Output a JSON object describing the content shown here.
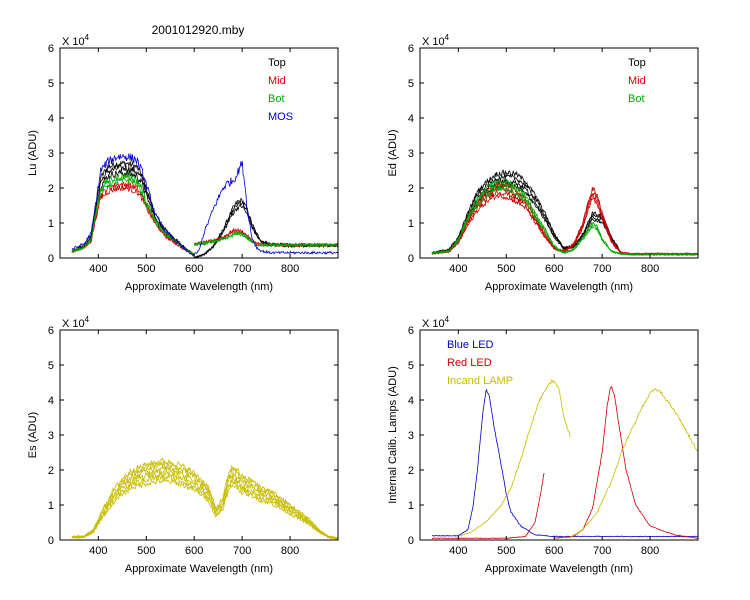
{
  "figure_title": "2001012920.mby",
  "chart_data": [
    {
      "type": "line",
      "id": "lu",
      "ylabel": "Lu (ADU)",
      "xlabel": "Approximate Wavelength (nm)",
      "multiplier": "X 10",
      "multiplier_exp": "4",
      "xlim": [
        320,
        900
      ],
      "ylim": [
        0,
        6
      ],
      "xticks": [
        400,
        500,
        600,
        700,
        800
      ],
      "yticks": [
        0,
        1,
        2,
        3,
        4,
        5,
        6
      ],
      "series": [
        {
          "name": "Top",
          "color": "#000000",
          "noise": 0.08,
          "copies": 3,
          "segments": [
            {
              "x": [
                345,
                370,
                385,
                395,
                405,
                420,
                440,
                460,
                480,
                490,
                500,
                520,
                540,
                560,
                580,
                600
              ],
              "y": [
                0.2,
                0.35,
                0.6,
                1.5,
                2.3,
                2.6,
                2.7,
                2.7,
                2.6,
                2.4,
                2.0,
                1.2,
                0.8,
                0.55,
                0.3,
                0.1
              ]
            },
            {
              "x": [
                600,
                620,
                640,
                660,
                670,
                680,
                690,
                700,
                710,
                720,
                730,
                740,
                760,
                800,
                900
              ],
              "y": [
                0.0,
                0.1,
                0.35,
                0.8,
                1.1,
                1.4,
                1.6,
                1.65,
                1.4,
                1.0,
                0.7,
                0.5,
                0.4,
                0.38,
                0.38
              ]
            }
          ]
        },
        {
          "name": "Mid",
          "color": "#cc0000",
          "noise": 0.08,
          "copies": 2,
          "segments": [
            {
              "x": [
                345,
                370,
                385,
                395,
                405,
                420,
                440,
                460,
                480,
                490,
                500,
                520,
                540,
                560,
                580,
                600
              ],
              "y": [
                0.2,
                0.3,
                0.5,
                1.2,
                1.8,
                2.0,
                2.1,
                2.1,
                2.0,
                1.8,
                1.5,
                1.0,
                0.65,
                0.45,
                0.25,
                0.1
              ]
            },
            {
              "x": [
                600,
                620,
                640,
                660,
                670,
                680,
                690,
                700,
                710,
                720,
                730,
                740,
                760,
                800,
                900
              ],
              "y": [
                0.4,
                0.45,
                0.5,
                0.6,
                0.68,
                0.78,
                0.8,
                0.75,
                0.65,
                0.5,
                0.42,
                0.4,
                0.4,
                0.38,
                0.38
              ]
            }
          ]
        },
        {
          "name": "Bot",
          "color": "#00aa00",
          "noise": 0.08,
          "copies": 2,
          "segments": [
            {
              "x": [
                345,
                370,
                385,
                395,
                405,
                420,
                440,
                460,
                480,
                490,
                500,
                520,
                540,
                560,
                580,
                600
              ],
              "y": [
                0.2,
                0.3,
                0.55,
                1.35,
                2.0,
                2.2,
                2.3,
                2.35,
                2.25,
                2.0,
                1.6,
                1.05,
                0.7,
                0.5,
                0.28,
                0.1
              ]
            },
            {
              "x": [
                600,
                620,
                640,
                660,
                670,
                680,
                690,
                700,
                710,
                720,
                730,
                740,
                760,
                800,
                900
              ],
              "y": [
                0.4,
                0.42,
                0.48,
                0.55,
                0.6,
                0.68,
                0.72,
                0.7,
                0.6,
                0.48,
                0.4,
                0.38,
                0.38,
                0.38,
                0.38
              ]
            }
          ]
        },
        {
          "name": "MOS",
          "color": "#0000cc",
          "noise": 0.1,
          "copies": 1,
          "segments": [
            {
              "x": [
                345,
                370,
                385,
                395,
                405,
                420,
                440,
                460,
                480,
                490,
                500,
                520,
                540,
                560,
                580,
                600
              ],
              "y": [
                0.25,
                0.4,
                0.7,
                1.6,
                2.5,
                2.75,
                2.9,
                2.9,
                2.8,
                2.5,
                2.1,
                1.2,
                0.8,
                0.5,
                0.25,
                0.05
              ]
            },
            {
              "x": [
                600,
                610,
                620,
                640,
                650,
                660,
                670,
                680,
                690,
                695,
                700,
                705,
                710,
                720,
                730,
                740,
                760,
                900
              ],
              "y": [
                0.1,
                0.2,
                0.7,
                1.4,
                1.7,
                2.0,
                2.15,
                2.2,
                2.4,
                2.6,
                2.7,
                2.2,
                1.5,
                0.6,
                0.3,
                0.2,
                0.15,
                0.15
              ]
            }
          ]
        }
      ]
    },
    {
      "type": "line",
      "id": "ed",
      "ylabel": "Ed  (ADU)",
      "xlabel": "Approximate Wavelength (nm)",
      "multiplier": "X 10",
      "multiplier_exp": "4",
      "xlim": [
        320,
        900
      ],
      "ylim": [
        0,
        6
      ],
      "xticks": [
        400,
        500,
        600,
        700,
        800
      ],
      "yticks": [
        0,
        1,
        2,
        3,
        4,
        5,
        6
      ],
      "series": [
        {
          "name": "Top",
          "color": "#000000",
          "noise": 0.06,
          "copies": 4,
          "segments": [
            {
              "x": [
                345,
                380,
                400,
                420,
                440,
                460,
                480,
                500,
                520,
                540,
                560,
                580,
                600,
                620,
                640,
                660,
                680,
                700,
                720,
                740,
                760,
                800,
                900
              ],
              "y": [
                0.15,
                0.25,
                0.6,
                1.3,
                1.9,
                2.2,
                2.4,
                2.45,
                2.4,
                2.2,
                1.8,
                1.3,
                0.7,
                0.3,
                0.35,
                0.7,
                1.3,
                1.2,
                0.6,
                0.15,
                0.12,
                0.12,
                0.12
              ]
            }
          ]
        },
        {
          "name": "Mid",
          "color": "#cc0000",
          "noise": 0.07,
          "copies": 4,
          "segments": [
            {
              "x": [
                345,
                380,
                400,
                420,
                440,
                460,
                480,
                500,
                520,
                540,
                560,
                580,
                600,
                620,
                640,
                660,
                670,
                680,
                690,
                700,
                720,
                740,
                760,
                800,
                900
              ],
              "y": [
                0.15,
                0.2,
                0.5,
                1.1,
                1.6,
                1.9,
                2.1,
                2.05,
                1.9,
                1.7,
                1.2,
                0.7,
                0.3,
                0.2,
                0.4,
                1.0,
                1.6,
                2.0,
                1.8,
                1.3,
                0.5,
                0.15,
                0.12,
                0.12,
                0.12
              ]
            }
          ]
        },
        {
          "name": "Bot",
          "color": "#00aa00",
          "noise": 0.06,
          "copies": 3,
          "segments": [
            {
              "x": [
                345,
                380,
                400,
                420,
                440,
                460,
                480,
                500,
                520,
                540,
                560,
                580,
                600,
                620,
                640,
                660,
                680,
                690,
                700,
                720,
                740,
                760,
                800,
                900
              ],
              "y": [
                0.15,
                0.2,
                0.55,
                1.2,
                1.7,
                2.0,
                2.2,
                2.2,
                2.05,
                1.8,
                1.3,
                0.85,
                0.35,
                0.15,
                0.25,
                0.6,
                1.0,
                0.9,
                0.55,
                0.2,
                0.12,
                0.12,
                0.12,
                0.12
              ]
            }
          ]
        }
      ]
    },
    {
      "type": "line",
      "id": "es",
      "ylabel": "Es  (ADU)",
      "xlabel": "Approximate Wavelength (nm)",
      "multiplier": "X 10",
      "multiplier_exp": "4",
      "xlim": [
        320,
        900
      ],
      "ylim": [
        0,
        6
      ],
      "xticks": [
        400,
        500,
        600,
        700,
        800
      ],
      "yticks": [
        0,
        1,
        2,
        3,
        4,
        5,
        6
      ],
      "series": [
        {
          "color": "#c8bc00",
          "noise": 0.08,
          "copies": 6,
          "segments": [
            {
              "x": [
                345,
                370,
                390,
                410,
                430,
                450,
                470,
                500,
                530,
                560,
                590,
                610,
                630,
                645,
                660,
                670,
                680,
                690,
                700,
                720,
                740,
                760,
                780,
                800,
                820,
                840,
                860,
                880,
                900
              ],
              "y": [
                0.1,
                0.1,
                0.3,
                0.9,
                1.4,
                1.75,
                2.0,
                2.15,
                2.25,
                2.2,
                2.0,
                1.8,
                1.5,
                0.9,
                1.2,
                1.8,
                2.1,
                2.0,
                1.8,
                1.7,
                1.5,
                1.4,
                1.2,
                1.0,
                0.8,
                0.6,
                0.3,
                0.1,
                0.05
              ]
            }
          ]
        }
      ]
    },
    {
      "type": "line",
      "id": "calib",
      "ylabel": "Internal Calib. Lamps (ADU)",
      "xlabel": "Approximate Wavelength (nm)",
      "multiplier": "X 10",
      "multiplier_exp": "4",
      "xlim": [
        320,
        900
      ],
      "ylim": [
        0,
        6
      ],
      "xticks": [
        400,
        500,
        600,
        700,
        800
      ],
      "yticks": [
        0,
        1,
        2,
        3,
        4,
        5,
        6
      ],
      "series": [
        {
          "name": "Blue LED",
          "color": "#0000cc",
          "noise": 0.03,
          "copies": 1,
          "segments": [
            {
              "x": [
                345,
                400,
                420,
                430,
                440,
                450,
                458,
                465,
                475,
                490,
                500,
                510,
                530,
                560,
                600,
                650,
                700,
                750,
                900
              ],
              "y": [
                0.12,
                0.12,
                0.3,
                0.9,
                2.0,
                3.5,
                4.3,
                4.1,
                3.2,
                2.1,
                1.3,
                0.8,
                0.4,
                0.15,
                0.1,
                0.1,
                0.1,
                0.1,
                0.1
              ]
            }
          ]
        },
        {
          "name": "Red LED",
          "color": "#cc0000",
          "noise": 0.03,
          "copies": 1,
          "segments": [
            {
              "x": [
                345,
                500,
                540,
                560,
                570,
                580
              ],
              "y": [
                0.05,
                0.05,
                0.1,
                0.5,
                1.2,
                2.0
              ]
            },
            {
              "x": [
                600,
                640,
                660,
                680,
                700,
                710,
                718,
                725,
                735,
                750,
                770,
                800,
                850,
                900
              ],
              "y": [
                0.05,
                0.1,
                0.3,
                0.9,
                2.5,
                3.8,
                4.4,
                4.2,
                3.3,
                2.0,
                1.0,
                0.4,
                0.15,
                0.05
              ]
            }
          ]
        },
        {
          "name": "Incand LAMP",
          "color": "#c8bc00",
          "noise": 0.03,
          "copies": 1,
          "segments": [
            {
              "x": [
                400,
                430,
                460,
                490,
                510,
                530,
                550,
                570,
                590,
                600,
                610,
                620,
                635
              ],
              "y": [
                0.1,
                0.25,
                0.55,
                1.0,
                1.5,
                2.3,
                3.2,
                4.0,
                4.5,
                4.55,
                4.3,
                3.5,
                2.9
              ]
            },
            {
              "x": [
                630,
                660,
                690,
                720,
                740,
                760,
                780,
                800,
                810,
                820,
                840,
                860,
                880,
                900
              ],
              "y": [
                0.05,
                0.3,
                0.8,
                1.7,
                2.5,
                3.1,
                3.7,
                4.2,
                4.3,
                4.25,
                3.9,
                3.5,
                3.0,
                2.5
              ]
            }
          ]
        }
      ]
    }
  ]
}
